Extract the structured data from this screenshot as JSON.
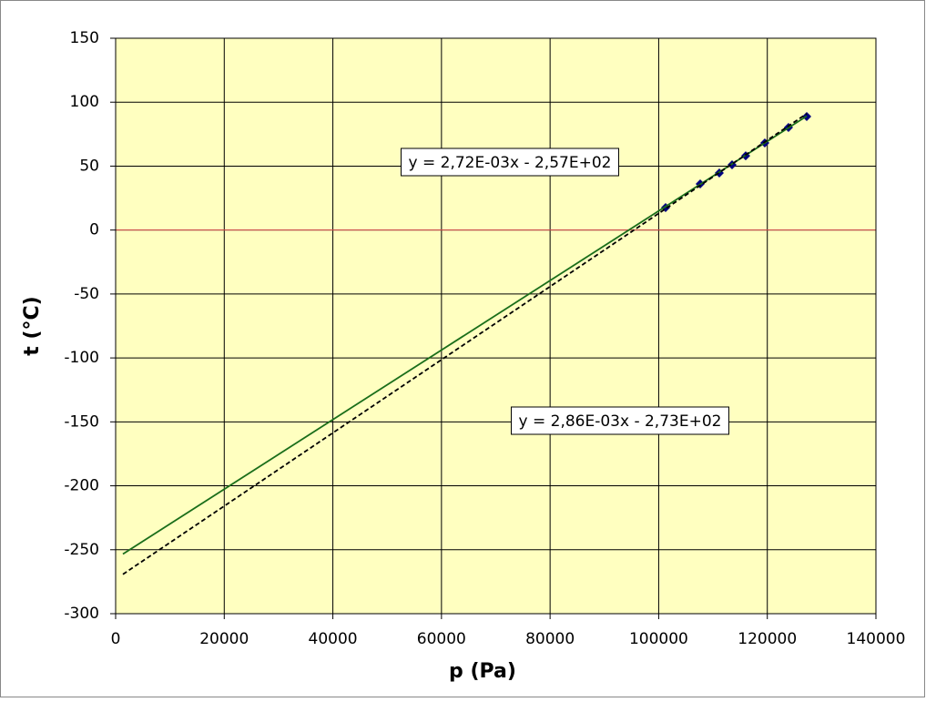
{
  "chart_data": {
    "type": "scatter",
    "xlabel": "p  (Pa)",
    "ylabel": "t  (°C)",
    "xlim": [
      0,
      140000
    ],
    "ylim": [
      -300,
      150
    ],
    "xticks": [
      0,
      20000,
      40000,
      60000,
      80000,
      100000,
      120000,
      140000
    ],
    "yticks": [
      -300,
      -250,
      -200,
      -150,
      -100,
      -50,
      0,
      50,
      100,
      150
    ],
    "grid": true,
    "background": "#ffffc0",
    "hline": {
      "value": 0,
      "color": "#e05050"
    },
    "series": [
      {
        "color": "#000080",
        "draw": "markers",
        "x": [
          101270,
          107640,
          111160,
          113510,
          116020,
          119540,
          123900,
          127260
        ],
        "values": [
          17.6,
          36.1,
          44.6,
          51.0,
          58.1,
          68.1,
          80.2,
          88.8
        ]
      },
      {
        "color": "#1a6e1a",
        "draw": "line",
        "dash": false,
        "x": [
          1340,
          127260
        ],
        "values": [
          -253.4,
          89.1
        ]
      },
      {
        "color": "#000000",
        "draw": "line",
        "dash": true,
        "x": [
          1340,
          127260
        ],
        "values": [
          -269.2,
          91.0
        ]
      }
    ],
    "annotations": [
      "y = 2,72E-03x - 2,57E+02",
      "y = 2,86E-03x - 2,73E+02"
    ]
  }
}
